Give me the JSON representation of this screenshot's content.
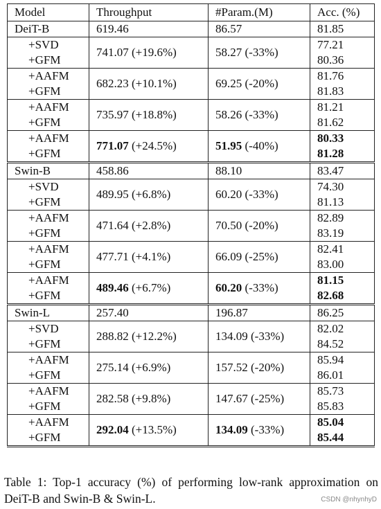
{
  "table": {
    "header": [
      "Model",
      "Throughput",
      "#Param.(M)",
      "Acc. (%)"
    ],
    "groups": [
      {
        "model": "DeiT-B",
        "throughput": "619.46",
        "params": "86.57",
        "acc": "81.85",
        "rows": [
          {
            "method": [
              "+SVD",
              "+GFM"
            ],
            "throughput": "741.07",
            "throughput_delta": "(+19.6%)",
            "params": "58.27",
            "params_delta": "(-33%)",
            "acc": [
              "77.21",
              "80.36"
            ],
            "bold": false
          },
          {
            "method": [
              "+AAFM",
              "+GFM"
            ],
            "throughput": "682.23",
            "throughput_delta": "(+10.1%)",
            "params": "69.25",
            "params_delta": "(-20%)",
            "acc": [
              "81.76",
              "81.83"
            ],
            "bold": false
          },
          {
            "method": [
              "+AAFM",
              "+GFM"
            ],
            "throughput": "735.97",
            "throughput_delta": "(+18.8%)",
            "params": "58.26",
            "params_delta": "(-33%)",
            "acc": [
              "81.21",
              "81.62"
            ],
            "bold": false
          },
          {
            "method": [
              "+AAFM",
              "+GFM"
            ],
            "throughput": "771.07",
            "throughput_delta": "(+24.5%)",
            "params": "51.95",
            "params_delta": "(-40%)",
            "acc": [
              "80.33",
              "81.28"
            ],
            "bold": true
          }
        ]
      },
      {
        "model": "Swin-B",
        "throughput": "458.86",
        "params": "88.10",
        "acc": "83.47",
        "rows": [
          {
            "method": [
              "+SVD",
              "+GFM"
            ],
            "throughput": "489.95",
            "throughput_delta": "(+6.8%)",
            "params": "60.20",
            "params_delta": "(-33%)",
            "acc": [
              "74.30",
              "81.13"
            ],
            "bold": false
          },
          {
            "method": [
              "+AAFM",
              "+GFM"
            ],
            "throughput": "471.64",
            "throughput_delta": "(+2.8%)",
            "params": "70.50",
            "params_delta": "(-20%)",
            "acc": [
              "82.89",
              "83.19"
            ],
            "bold": false
          },
          {
            "method": [
              "+AAFM",
              "+GFM"
            ],
            "throughput": "477.71",
            "throughput_delta": "(+4.1%)",
            "params": "66.09",
            "params_delta": "(-25%)",
            "acc": [
              "82.41",
              "83.00"
            ],
            "bold": false
          },
          {
            "method": [
              "+AAFM",
              "+GFM"
            ],
            "throughput": "489.46",
            "throughput_delta": "(+6.7%)",
            "params": "60.20",
            "params_delta": "(-33%)",
            "acc": [
              "81.15",
              "82.68"
            ],
            "bold": true
          }
        ]
      },
      {
        "model": "Swin-L",
        "throughput": "257.40",
        "params": "196.87",
        "acc": "86.25",
        "rows": [
          {
            "method": [
              "+SVD",
              "+GFM"
            ],
            "throughput": "288.82",
            "throughput_delta": "(+12.2%)",
            "params": "134.09",
            "params_delta": "(-33%)",
            "acc": [
              "82.02",
              "84.52"
            ],
            "bold": false
          },
          {
            "method": [
              "+AAFM",
              "+GFM"
            ],
            "throughput": "275.14",
            "throughput_delta": "(+6.9%)",
            "params": "157.52",
            "params_delta": "(-20%)",
            "acc": [
              "85.94",
              "86.01"
            ],
            "bold": false
          },
          {
            "method": [
              "+AAFM",
              "+GFM"
            ],
            "throughput": "282.58",
            "throughput_delta": "(+9.8%)",
            "params": "147.67",
            "params_delta": "(-25%)",
            "acc": [
              "85.73",
              "85.83"
            ],
            "bold": false
          },
          {
            "method": [
              "+AAFM",
              "+GFM"
            ],
            "throughput": "292.04",
            "throughput_delta": "(+13.5%)",
            "params": "134.09",
            "params_delta": "(-33%)",
            "acc": [
              "85.04",
              "85.44"
            ],
            "bold": true
          }
        ]
      }
    ]
  },
  "caption": "Table 1: Top-1 accuracy (%) of performing low-rank approximation on DeiT-B and Swin-B & Swin-L.",
  "watermark": "CSDN @nhynhyD"
}
